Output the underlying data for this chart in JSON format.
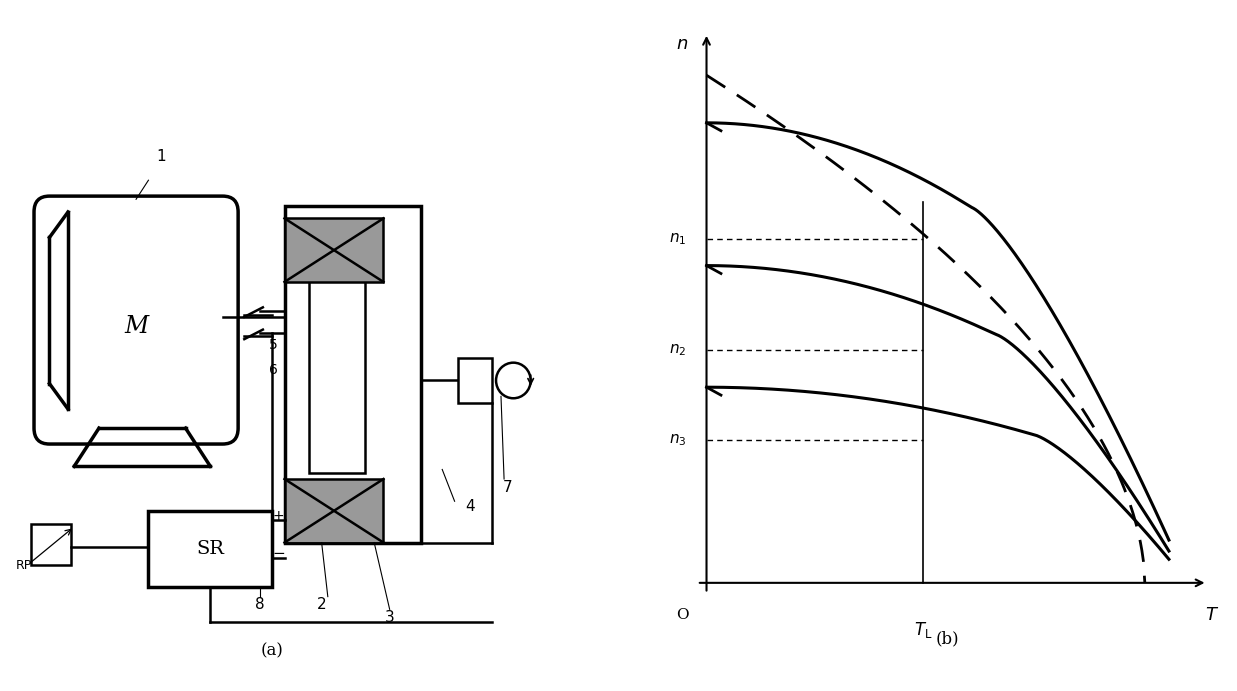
{
  "fig_width": 12.37,
  "fig_height": 6.91,
  "bg": "#ffffff",
  "lw": 1.8,
  "lw_thick": 2.5,
  "n_vals": [
    0.65,
    0.44,
    0.27
  ],
  "n_names": [
    "$n_1$",
    "$n_2$",
    "$n_3$"
  ],
  "TL": 0.45,
  "curve_n0": [
    0.87,
    0.6,
    0.37
  ],
  "curve_sag": [
    0.16,
    0.13,
    0.09
  ],
  "curve_drop": [
    0.55,
    0.6,
    0.68
  ],
  "label_a": "(a)",
  "label_b": "(b)"
}
